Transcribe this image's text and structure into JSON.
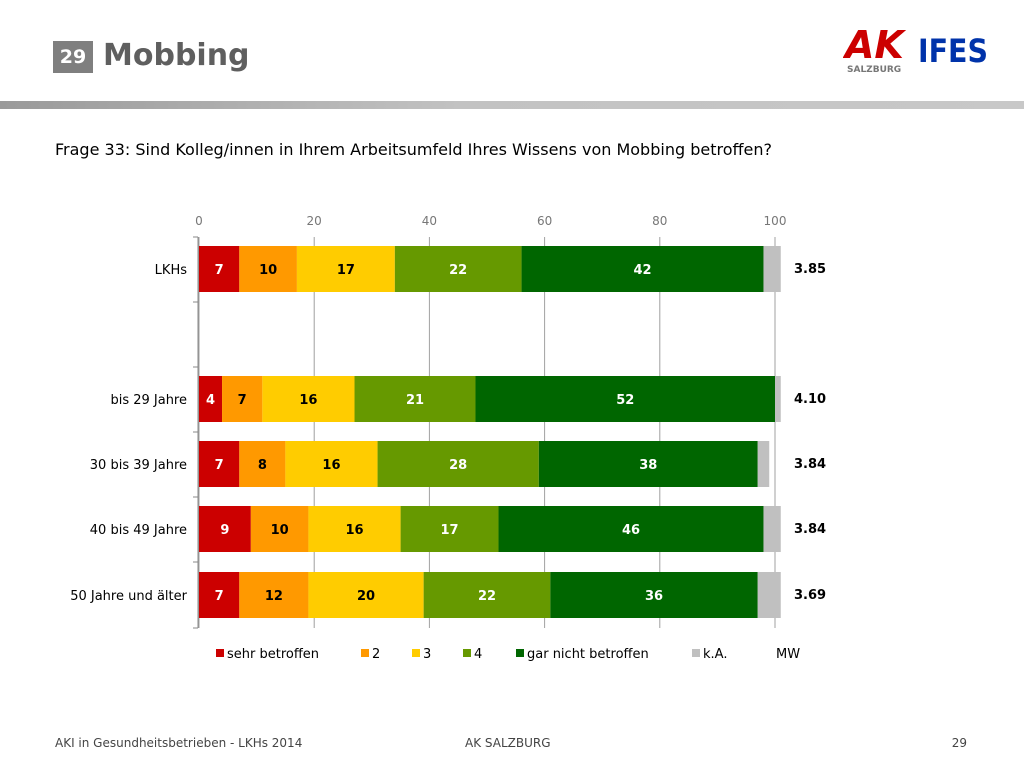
{
  "header": {
    "slide_number": "29",
    "title": "Mobbing",
    "logo_ak_text": "AK",
    "logo_ak_sub": "SALZBURG",
    "logo_ifes_text": "IFES"
  },
  "question": "Frage 33: Sind Kolleg/innen in Ihrem Arbeitsumfeld Ihres Wissens von Mobbing betroffen?",
  "chart_data": {
    "type": "bar",
    "orientation": "horizontal-stacked",
    "title": "",
    "xlim": [
      0,
      100
    ],
    "x_ticks": [
      "0",
      "20",
      "40",
      "60",
      "80",
      "100"
    ],
    "grid": true,
    "legend_position": "bottom",
    "mean_label": "MW",
    "categories": [
      "LKHs",
      "bis 29 Jahre",
      "30 bis 39 Jahre",
      "40 bis 49 Jahre",
      "50 Jahre und älter"
    ],
    "means": [
      "3.85",
      "4.10",
      "3.84",
      "3.84",
      "3.69"
    ],
    "series": [
      {
        "name": "sehr betroffen",
        "color": "#cc0000",
        "values": [
          7,
          4,
          7,
          9,
          7
        ]
      },
      {
        "name": "2",
        "color": "#ff9900",
        "values": [
          10,
          7,
          8,
          10,
          12
        ]
      },
      {
        "name": "3",
        "color": "#ffcc00",
        "values": [
          17,
          16,
          16,
          16,
          20
        ]
      },
      {
        "name": "4",
        "color": "#669900",
        "values": [
          22,
          21,
          28,
          17,
          22
        ]
      },
      {
        "name": "gar nicht betroffen",
        "color": "#006600",
        "values": [
          42,
          52,
          38,
          46,
          36
        ]
      },
      {
        "name": "k.A.",
        "color": "#c0c0c0",
        "values": [
          3,
          1,
          2,
          3,
          4
        ]
      }
    ]
  },
  "footer": {
    "left": "AKI in Gesundheitsbetrieben - LKHs 2014",
    "center": "AK SALZBURG",
    "page": "29"
  }
}
